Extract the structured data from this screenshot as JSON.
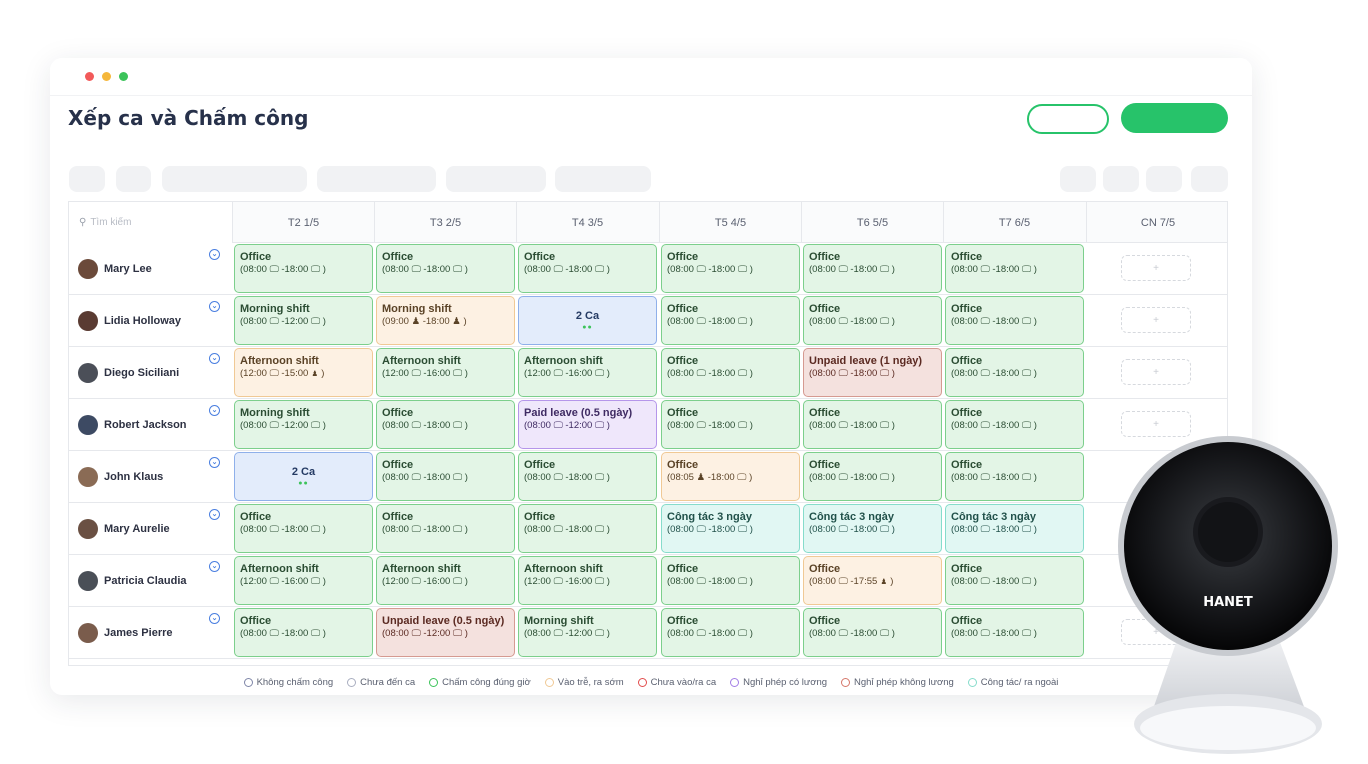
{
  "page_title": "Xếp ca và Chấm công",
  "search_placeholder": "Tìm kiếm",
  "days": [
    "T2 1/5",
    "T3 2/5",
    "T4 3/5",
    "T5 4/5",
    "T6 5/5",
    "T7 6/5",
    "CN 7/5"
  ],
  "employees": [
    {
      "name": "Mary Lee",
      "cells": [
        {
          "type": "green",
          "title": "Office",
          "sub": "(08:00 🖵 -18:00 🖵 )"
        },
        {
          "type": "green",
          "title": "Office",
          "sub": "(08:00 🖵 -18:00 🖵 )"
        },
        {
          "type": "green",
          "title": "Office",
          "sub": "(08:00 🖵 -18:00 🖵 )"
        },
        {
          "type": "green",
          "title": "Office",
          "sub": "(08:00 🖵 -18:00 🖵 )"
        },
        {
          "type": "green",
          "title": "Office",
          "sub": "(08:00 🖵 -18:00 🖵 )"
        },
        {
          "type": "green",
          "title": "Office",
          "sub": "(08:00 🖵 -18:00 🖵 )"
        },
        {
          "type": "add",
          "title": "+",
          "sub": ""
        }
      ]
    },
    {
      "name": "Lidia Holloway",
      "cells": [
        {
          "type": "green",
          "title": "Morning shift",
          "sub": "(08:00 🖵 -12:00 🖵 )"
        },
        {
          "type": "orange",
          "title": "Morning shift",
          "sub": "(09:00 ♟ -18:00 ♟ )"
        },
        {
          "type": "blue",
          "title": "2 Ca",
          "sub": "●●"
        },
        {
          "type": "green",
          "title": "Office",
          "sub": "(08:00 🖵 -18:00 🖵 )"
        },
        {
          "type": "green",
          "title": "Office",
          "sub": "(08:00 🖵 -18:00 🖵 )"
        },
        {
          "type": "green",
          "title": "Office",
          "sub": "(08:00 🖵 -18:00 🖵 )"
        },
        {
          "type": "add",
          "title": "+",
          "sub": ""
        }
      ]
    },
    {
      "name": "Diego Siciliani",
      "cells": [
        {
          "type": "orange",
          "title": "Afternoon shift",
          "sub": "(12:00 🖵 -15:00 ♟ )"
        },
        {
          "type": "green",
          "title": "Afternoon shift",
          "sub": "(12:00 🖵 -16:00 🖵 )"
        },
        {
          "type": "green",
          "title": "Afternoon shift",
          "sub": "(12:00 🖵 -16:00 🖵 )"
        },
        {
          "type": "green",
          "title": "Office",
          "sub": "(08:00 🖵 -18:00 🖵 )"
        },
        {
          "type": "red",
          "title": "Unpaid leave (1 ngày)",
          "sub": "(08:00 🖵 -18:00 🖵 )"
        },
        {
          "type": "green",
          "title": "Office",
          "sub": "(08:00 🖵 -18:00 🖵 )"
        },
        {
          "type": "add",
          "title": "+",
          "sub": ""
        }
      ]
    },
    {
      "name": "Robert Jackson",
      "cells": [
        {
          "type": "green",
          "title": "Morning shift",
          "sub": "(08:00 🖵 -12:00 🖵 )"
        },
        {
          "type": "green",
          "title": "Office",
          "sub": "(08:00 🖵 -18:00 🖵 )"
        },
        {
          "type": "purple",
          "title": "Paid leave (0.5 ngày)",
          "sub": "(08:00 🖵 -12:00 🖵 )"
        },
        {
          "type": "green",
          "title": "Office",
          "sub": "(08:00 🖵 -18:00 🖵 )"
        },
        {
          "type": "green",
          "title": "Office",
          "sub": "(08:00 🖵 -18:00 🖵 )"
        },
        {
          "type": "green",
          "title": "Office",
          "sub": "(08:00 🖵 -18:00 🖵 )"
        },
        {
          "type": "add",
          "title": "+",
          "sub": ""
        }
      ]
    },
    {
      "name": "John Klaus",
      "cells": [
        {
          "type": "blue",
          "title": "2 Ca",
          "sub": "●●"
        },
        {
          "type": "green",
          "title": "Office",
          "sub": "(08:00 🖵 -18:00 🖵 )"
        },
        {
          "type": "green",
          "title": "Office",
          "sub": "(08:00 🖵 -18:00 🖵 )"
        },
        {
          "type": "orange",
          "title": "Office",
          "sub": "(08:05 ♟ -18:00 🖵 )"
        },
        {
          "type": "green",
          "title": "Office",
          "sub": "(08:00 🖵 -18:00 🖵 )"
        },
        {
          "type": "green",
          "title": "Office",
          "sub": "(08:00 🖵 -18:00 🖵 )"
        },
        {
          "type": "none",
          "title": "",
          "sub": ""
        }
      ]
    },
    {
      "name": "Mary Aurelie",
      "cells": [
        {
          "type": "green",
          "title": "Office",
          "sub": "(08:00 🖵 -18:00 🖵 )"
        },
        {
          "type": "green",
          "title": "Office",
          "sub": "(08:00 🖵 -18:00 🖵 )"
        },
        {
          "type": "green",
          "title": "Office",
          "sub": "(08:00 🖵 -18:00 🖵 )"
        },
        {
          "type": "teal",
          "title": "Công tác 3 ngày",
          "sub": "(08:00 🖵 -18:00 🖵 )"
        },
        {
          "type": "teal",
          "title": "Công tác 3 ngày",
          "sub": "(08:00 🖵 -18:00 🖵 )"
        },
        {
          "type": "teal",
          "title": "Công tác 3 ngày",
          "sub": "(08:00 🖵 -18:00 🖵 )"
        },
        {
          "type": "none",
          "title": "",
          "sub": ""
        }
      ]
    },
    {
      "name": "Patricia Claudia",
      "cells": [
        {
          "type": "green",
          "title": "Afternoon shift",
          "sub": "(12:00 🖵 -16:00 🖵 )"
        },
        {
          "type": "green",
          "title": "Afternoon shift",
          "sub": "(12:00 🖵 -16:00 🖵 )"
        },
        {
          "type": "green",
          "title": "Afternoon shift",
          "sub": "(12:00 🖵 -16:00 🖵 )"
        },
        {
          "type": "green",
          "title": "Office",
          "sub": "(08:00 🖵 -18:00 🖵 )"
        },
        {
          "type": "orange",
          "title": "Office",
          "sub": "(08:00 🖵 -17:55 ♟ )"
        },
        {
          "type": "green",
          "title": "Office",
          "sub": "(08:00 🖵 -18:00 🖵 )"
        },
        {
          "type": "none",
          "title": "",
          "sub": ""
        }
      ]
    },
    {
      "name": "James Pierre",
      "cells": [
        {
          "type": "green",
          "title": "Office",
          "sub": "(08:00 🖵 -18:00 🖵 )"
        },
        {
          "type": "red",
          "title": "Unpaid leave (0.5 ngày)",
          "sub": "(08:00 🖵 -12:00 🖵 )"
        },
        {
          "type": "green",
          "title": "Morning shift",
          "sub": "(08:00 🖵 -12:00 🖵 )"
        },
        {
          "type": "green",
          "title": "Office",
          "sub": "(08:00 🖵 -18:00 🖵 )"
        },
        {
          "type": "green",
          "title": "Office",
          "sub": "(08:00 🖵 -18:00 🖵 )"
        },
        {
          "type": "green",
          "title": "Office",
          "sub": "(08:00 🖵 -18:00 🖵 )"
        },
        {
          "type": "add",
          "title": "+",
          "sub": ""
        }
      ]
    }
  ],
  "legend": [
    {
      "label": "Không chấm công",
      "color": "#7f86a8"
    },
    {
      "label": "Chưa đến ca",
      "color": "#a9aec0"
    },
    {
      "label": "Chấm công đúng giờ",
      "color": "#3cc35a"
    },
    {
      "label": "Vào trễ, ra sớm",
      "color": "#f0c995"
    },
    {
      "label": "Chưa vào/ra ca",
      "color": "#e24c4c"
    },
    {
      "label": "Nghỉ phép có lương",
      "color": "#a27de6"
    },
    {
      "label": "Nghỉ phép không lương",
      "color": "#d5776a"
    },
    {
      "label": "Công tác/ ra ngoài",
      "color": "#86dccb"
    }
  ],
  "camera_brand": "HANET",
  "colors": {
    "accent": "#27c36a"
  }
}
